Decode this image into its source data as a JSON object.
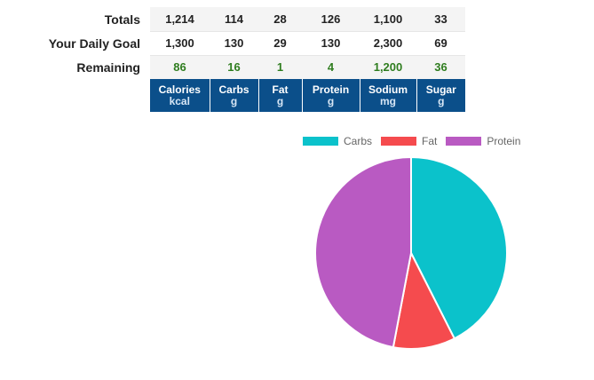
{
  "summary": {
    "rows": [
      {
        "label": "Totals",
        "values": [
          "1,214",
          "114",
          "28",
          "126",
          "1,100",
          "33"
        ]
      },
      {
        "label": "Your Daily Goal",
        "values": [
          "1,300",
          "130",
          "29",
          "130",
          "2,300",
          "69"
        ]
      },
      {
        "label": "Remaining",
        "values": [
          "86",
          "16",
          "1",
          "4",
          "1,200",
          "36"
        ]
      }
    ],
    "columns": [
      {
        "name": "Calories",
        "unit": "kcal"
      },
      {
        "name": "Carbs",
        "unit": "g"
      },
      {
        "name": "Fat",
        "unit": "g"
      },
      {
        "name": "Protein",
        "unit": "g"
      },
      {
        "name": "Sodium",
        "unit": "mg"
      },
      {
        "name": "Sugar",
        "unit": "g"
      }
    ],
    "header_color": "#0b4f8a",
    "remaining_color": "#2f7d1f"
  },
  "chart_data": {
    "type": "pie",
    "categories": [
      "Carbs",
      "Fat",
      "Protein"
    ],
    "values": [
      114,
      28,
      126
    ],
    "colors": [
      "#0bc2cb",
      "#f54b4e",
      "#b95ac2"
    ],
    "legend_position": "top"
  }
}
